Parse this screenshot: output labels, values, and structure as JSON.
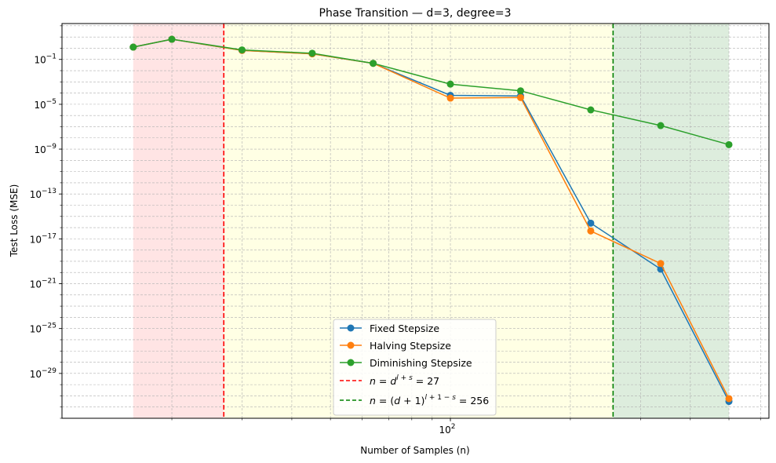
{
  "chart_data": {
    "type": "line",
    "title": "Phase Transition — d=3, degree=3",
    "xlabel": "Number of Samples (n)",
    "ylabel": "Test Loss (MSE)",
    "xscale": "log",
    "yscale": "log",
    "xlim": [
      10.6,
      630
    ],
    "ylim_exponent": [
      -33,
      2.2
    ],
    "x_ticks": [
      {
        "value": 100,
        "label": "10",
        "exp": "2"
      }
    ],
    "y_ticks": [
      {
        "exp": -29,
        "label": "10",
        "sup": "−29"
      },
      {
        "exp": -25,
        "label": "10",
        "sup": "−25"
      },
      {
        "exp": -21,
        "label": "10",
        "sup": "−21"
      },
      {
        "exp": -17,
        "label": "10",
        "sup": "−17"
      },
      {
        "exp": -13,
        "label": "10",
        "sup": "−13"
      },
      {
        "exp": -9,
        "label": "10",
        "sup": "−9"
      },
      {
        "exp": -5,
        "label": "10",
        "sup": "−5"
      },
      {
        "exp": -1,
        "label": "10",
        "sup": "−1"
      }
    ],
    "grid": true,
    "x": [
      16,
      20,
      30,
      45,
      64,
      100,
      150,
      225,
      337,
      500
    ],
    "series": [
      {
        "name": "Fixed Stepsize",
        "color": "#1f77b4",
        "values_log10": [
          0.1,
          0.8,
          -0.2,
          -0.5,
          -1.35,
          -4.2,
          -4.25,
          -15.6,
          -19.7,
          -31.5
        ]
      },
      {
        "name": "Halving Stepsize",
        "color": "#ff7f0e",
        "values_log10": [
          0.1,
          0.8,
          -0.2,
          -0.5,
          -1.35,
          -4.45,
          -4.4,
          -16.3,
          -19.2,
          -31.25
        ]
      },
      {
        "name": "Diminishing Stepsize",
        "color": "#2ca02c",
        "values_log10": [
          0.1,
          0.8,
          -0.15,
          -0.45,
          -1.35,
          -3.2,
          -3.8,
          -5.5,
          -6.9,
          -8.6
        ]
      }
    ],
    "vlines": [
      {
        "x": 27,
        "color": "#ff0000",
        "legend": "n = d^{l+s} = 27"
      },
      {
        "x": 256,
        "color": "#008000",
        "legend": "n = (d+1)^{l+1-s} = 256"
      }
    ],
    "regions": [
      {
        "from": 16,
        "to": 27,
        "color": "#ffb3b3"
      },
      {
        "from": 27,
        "to": 256,
        "color": "#ffffb3"
      },
      {
        "from": 256,
        "to": 500,
        "color": "#9fcc9f"
      }
    ],
    "legend_location": "lower center",
    "legend": {
      "fixed": "Fixed Stepsize",
      "halving": "Halving Stepsize",
      "diminishing": "Diminishing Stepsize"
    }
  }
}
